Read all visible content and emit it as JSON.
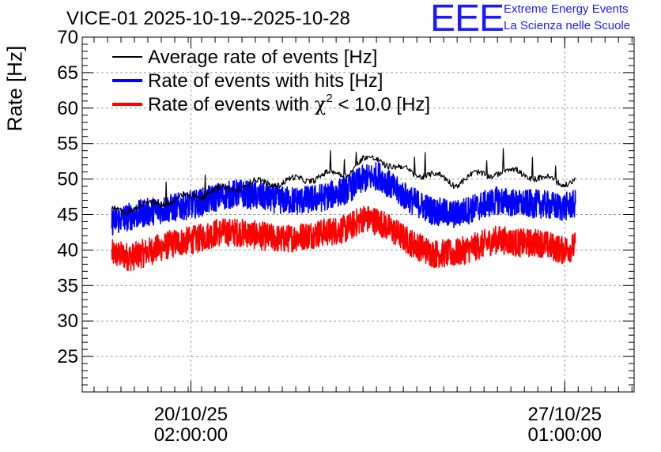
{
  "chart_data": {
    "type": "line",
    "title": "VICE-01 2025-10-19--2025-10-28",
    "xlabel": "",
    "ylabel": "Rate [Hz]",
    "ylim": [
      20,
      70
    ],
    "yticks": [
      25,
      30,
      35,
      40,
      45,
      50,
      55,
      60,
      65,
      70
    ],
    "xticks": [
      {
        "line1": "20/10/25",
        "line2": "02:00:00",
        "t": 0.3
      },
      {
        "line1": "27/10/25",
        "line2": "01:00:00",
        "t": 7.25
      }
    ],
    "xlim_days": [
      -1.72,
      8.54
    ],
    "data_start_day": -1.17,
    "data_end_day": 7.45,
    "grid": true,
    "legend_position": "top-left",
    "legend": [
      {
        "label": "Average rate of events [Hz]",
        "color": "#000000"
      },
      {
        "label": "Rate of events with hits [Hz]",
        "color": "#0000ff"
      },
      {
        "label_prefix": "Rate of events with ",
        "label_chi": "χ",
        "label_sup": "2",
        "label_suffix": " < 10.0 [Hz]",
        "color": "#ff0000"
      }
    ],
    "series": [
      {
        "name": "Average rate of events [Hz]",
        "color": "#000000",
        "x_days": [
          -1.17,
          -0.8,
          -0.4,
          0.0,
          0.4,
          0.8,
          1.2,
          1.6,
          2.0,
          2.4,
          2.8,
          3.2,
          3.5,
          3.8,
          4.1,
          4.4,
          4.8,
          5.2,
          5.6,
          6.0,
          6.4,
          6.8,
          7.2,
          7.45
        ],
        "values": [
          45.3,
          46.0,
          46.5,
          47.0,
          47.8,
          48.3,
          49.0,
          49.5,
          49.5,
          50.0,
          50.5,
          51.0,
          52.5,
          53.0,
          51.5,
          51.0,
          50.5,
          49.5,
          50.5,
          51.0,
          51.0,
          50.0,
          49.5,
          50.0
        ],
        "noise": 0.6
      },
      {
        "name": "Rate of events with hits [Hz]",
        "color": "#0000ff",
        "x_days": [
          -1.17,
          -0.8,
          -0.4,
          0.0,
          0.4,
          0.8,
          1.2,
          1.6,
          2.0,
          2.4,
          2.8,
          3.2,
          3.5,
          3.8,
          4.1,
          4.4,
          4.8,
          5.2,
          5.6,
          6.0,
          6.4,
          6.8,
          7.2,
          7.45
        ],
        "values": [
          44.0,
          44.8,
          45.5,
          46.0,
          46.5,
          47.5,
          48.0,
          47.5,
          47.0,
          47.0,
          47.5,
          48.5,
          50.0,
          50.5,
          48.5,
          47.0,
          45.5,
          45.0,
          46.0,
          47.0,
          46.5,
          46.5,
          46.0,
          46.5
        ],
        "noise": 2.0
      },
      {
        "name": "Rate of events with χ2 < 10.0 [Hz]",
        "color": "#ff0000",
        "x_days": [
          -1.17,
          -0.8,
          -0.4,
          0.0,
          0.4,
          0.8,
          1.2,
          1.6,
          2.0,
          2.4,
          2.8,
          3.2,
          3.5,
          3.8,
          4.1,
          4.4,
          4.8,
          5.2,
          5.6,
          6.0,
          6.4,
          6.8,
          7.2,
          7.45
        ],
        "values": [
          39.5,
          39.0,
          40.0,
          41.0,
          41.5,
          42.5,
          42.5,
          42.0,
          41.5,
          42.0,
          42.5,
          43.0,
          44.5,
          44.0,
          42.5,
          41.0,
          39.5,
          39.5,
          40.5,
          41.5,
          41.0,
          41.0,
          40.0,
          40.5
        ],
        "noise": 2.0
      }
    ]
  },
  "logo": {
    "mark": "EEE",
    "line1": "Extreme Energy Events",
    "line2": "La Scienza nelle Scuole",
    "color": "#1a1aff"
  }
}
